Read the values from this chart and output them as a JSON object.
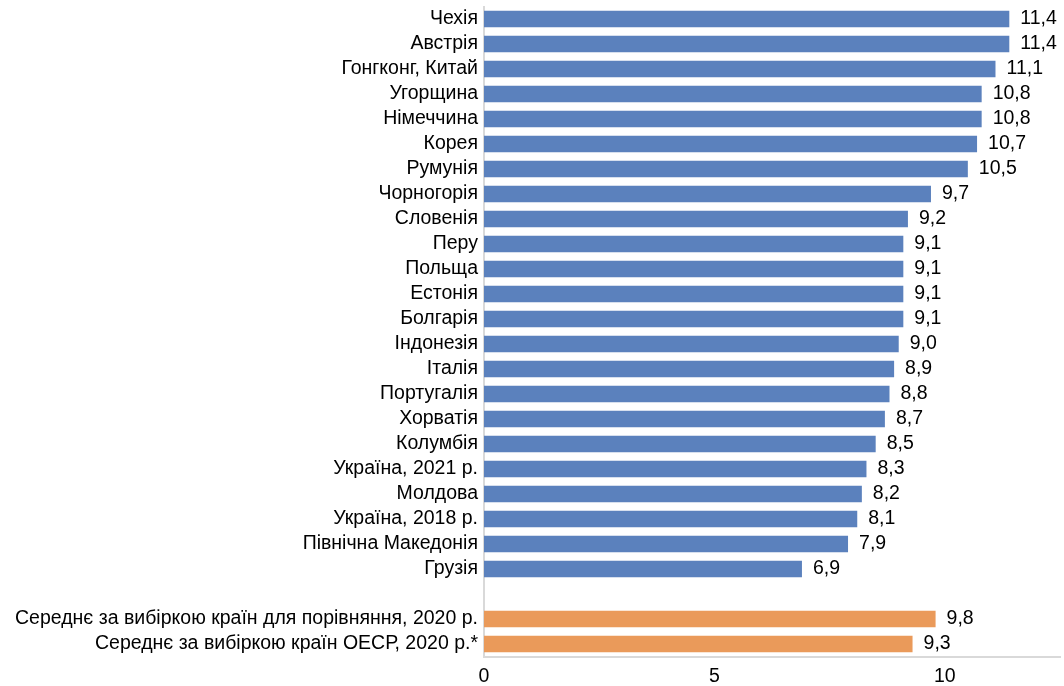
{
  "chart_data": {
    "type": "bar",
    "orientation": "horizontal",
    "categories": [
      "Чехія",
      "Австрія",
      "Гонгконг, Китай",
      "Угорщина",
      "Німеччина",
      "Корея",
      "Румунія",
      "Чорногорія",
      "Словенія",
      "Перу",
      "Польща",
      "Естонія",
      "Болгарія",
      "Індонезія",
      "Італія",
      "Португалія",
      "Хорватія",
      "Колумбія",
      "Україна, 2021 р.",
      "Молдова",
      "Україна, 2018 р.",
      "Північна Македонія",
      "Грузія",
      null,
      "Середнє за вибіркою країн для порівняння, 2020 р.",
      "Середнє за вибіркою країн ОЕСР, 2020 р.*"
    ],
    "values": [
      11.4,
      11.4,
      11.1,
      10.8,
      10.8,
      10.7,
      10.5,
      9.7,
      9.2,
      9.1,
      9.1,
      9.1,
      9.1,
      9.0,
      8.9,
      8.8,
      8.7,
      8.5,
      8.3,
      8.2,
      8.1,
      7.9,
      6.9,
      null,
      9.8,
      9.3
    ],
    "value_labels": [
      "11,4",
      "11,4",
      "11,1",
      "10,8",
      "10,8",
      "10,7",
      "10,5",
      "9,7",
      "9,2",
      "9,1",
      "9,1",
      "9,1",
      "9,1",
      "9,0",
      "8,9",
      "8,8",
      "8,7",
      "8,5",
      "8,3",
      "8,2",
      "8,1",
      "7,9",
      "6,9",
      null,
      "9,8",
      "9,3"
    ],
    "colors": [
      "#5b81bd",
      "#5b81bd",
      "#5b81bd",
      "#5b81bd",
      "#5b81bd",
      "#5b81bd",
      "#5b81bd",
      "#5b81bd",
      "#5b81bd",
      "#5b81bd",
      "#5b81bd",
      "#5b81bd",
      "#5b81bd",
      "#5b81bd",
      "#5b81bd",
      "#5b81bd",
      "#5b81bd",
      "#5b81bd",
      "#5b81bd",
      "#5b81bd",
      "#5b81bd",
      "#5b81bd",
      "#5b81bd",
      null,
      "#ea9a5a",
      "#ea9a5a"
    ],
    "xlim": [
      0,
      12.5
    ],
    "xticks": [
      0,
      5,
      10
    ],
    "grid": false,
    "legend": false
  }
}
